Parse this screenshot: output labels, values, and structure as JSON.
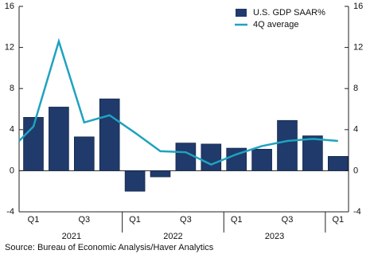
{
  "chart_data": {
    "type": "bar",
    "categories": [
      null,
      "Q1",
      null,
      "Q3",
      null,
      "Q1",
      null,
      "Q3",
      null,
      "Q1",
      null,
      "Q3",
      null,
      "Q1"
    ],
    "years": [
      "2021",
      "2022",
      "2023"
    ],
    "series": [
      {
        "name": "U.S. GDP SAAR%",
        "type": "bar",
        "color": "#1f3a6b",
        "values": [
          null,
          5.2,
          6.2,
          3.3,
          7.0,
          -2.0,
          -0.6,
          2.7,
          2.6,
          2.2,
          2.1,
          4.9,
          3.4,
          1.4
        ]
      },
      {
        "name": "4Q average",
        "type": "line",
        "color": "#1fa2bf",
        "values": [
          2.9,
          4.3,
          12.6,
          4.7,
          5.4,
          3.7,
          1.9,
          1.8,
          0.6,
          1.6,
          2.4,
          2.9,
          3.1,
          2.9
        ]
      }
    ],
    "ylim": [
      -4,
      16
    ],
    "yticks": [
      -4,
      0,
      4,
      8,
      12,
      16
    ],
    "y2lim": [
      -4,
      16
    ],
    "y2ticks": [
      -4,
      0,
      4,
      8,
      12,
      16
    ],
    "source": "Source:  Bureau of Economic Analysis/Haver Analytics"
  }
}
